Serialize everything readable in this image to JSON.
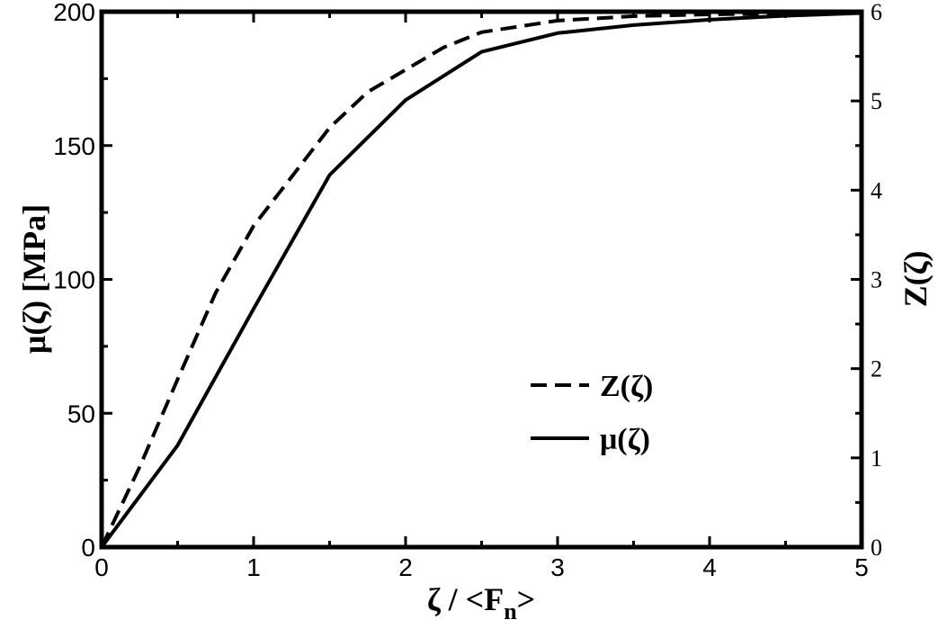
{
  "chart_data": {
    "type": "line",
    "xlabel": "ζ / <F",
    "xlabel_sub": "n",
    "xlabel_tail": ">",
    "ylabel_left": "μ(ζ) [MPa]",
    "ylabel_right": "Z(ζ)",
    "xlim": [
      0,
      5
    ],
    "ylim_left": [
      0,
      200
    ],
    "ylim_right": [
      0,
      6
    ],
    "x_ticks": [
      "0",
      "1",
      "2",
      "3",
      "4",
      "5"
    ],
    "y_left_ticks": [
      "0",
      "50",
      "100",
      "150",
      "200"
    ],
    "y_right_ticks": [
      "0",
      "1",
      "2",
      "3",
      "4",
      "5",
      "6"
    ],
    "grid": false,
    "legend_position": "center-right",
    "series": [
      {
        "name": "Z(ζ)",
        "axis": "right",
        "style": "dashed",
        "x": [
          0,
          0.25,
          0.5,
          0.75,
          1.0,
          1.25,
          1.5,
          1.75,
          2.0,
          2.25,
          2.5,
          3.0,
          3.5,
          4.0,
          4.5,
          5.0
        ],
        "y": [
          0,
          0.9,
          1.88,
          2.85,
          3.6,
          4.15,
          4.7,
          5.1,
          5.35,
          5.6,
          5.77,
          5.9,
          5.95,
          5.97,
          5.98,
          5.99
        ]
      },
      {
        "name": "μ(ζ)",
        "axis": "left",
        "style": "solid",
        "x": [
          0,
          0.5,
          1.0,
          1.5,
          2.0,
          2.5,
          3.0,
          3.5,
          4.0,
          4.5,
          5.0
        ],
        "y": [
          0,
          38,
          89,
          139,
          167,
          185,
          192,
          195,
          197,
          198.5,
          199.5
        ]
      }
    ]
  }
}
